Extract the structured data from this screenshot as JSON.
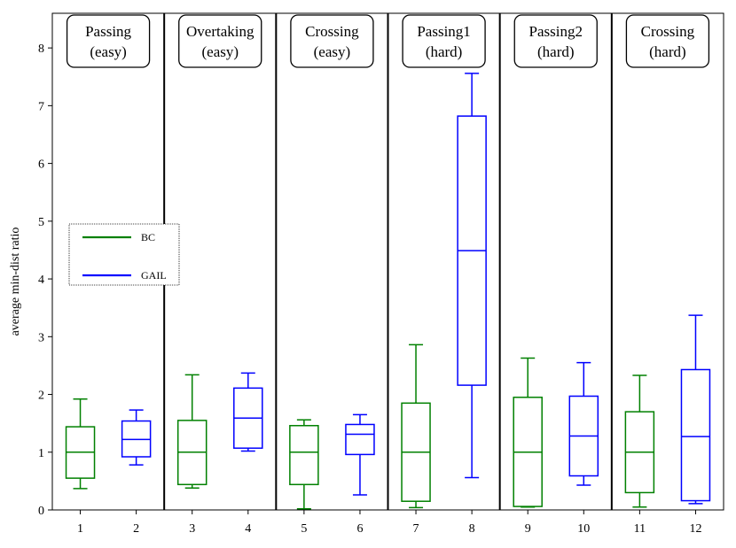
{
  "chart_data": {
    "type": "boxplot",
    "ylabel": "average min-dist ratio",
    "xlabel": "",
    "ylim": [
      0,
      8.6
    ],
    "yticks": [
      0,
      1,
      2,
      3,
      4,
      5,
      6,
      7,
      8
    ],
    "xticks": [
      1,
      2,
      3,
      4,
      5,
      6,
      7,
      8,
      9,
      10,
      11,
      12
    ],
    "grid": false,
    "legend": {
      "placement": "left-middle",
      "entries": [
        {
          "name": "BC",
          "color": "#008000"
        },
        {
          "name": "GAIL",
          "color": "#0000ff"
        }
      ]
    },
    "scenarios": [
      {
        "line1": "Passing",
        "line2": "(easy)"
      },
      {
        "line1": "Overtaking",
        "line2": "(easy)"
      },
      {
        "line1": "Crossing",
        "line2": "(easy)"
      },
      {
        "line1": "Passing1",
        "line2": "(hard)"
      },
      {
        "line1": "Passing2",
        "line2": "(hard)"
      },
      {
        "line1": "Crossing",
        "line2": "(hard)"
      }
    ],
    "boxes": [
      {
        "x": 1,
        "series": "BC",
        "whislo": 0.37,
        "q1": 0.55,
        "med": 1.0,
        "q3": 1.44,
        "whishi": 1.92
      },
      {
        "x": 2,
        "series": "GAIL",
        "whislo": 0.78,
        "q1": 0.92,
        "med": 1.22,
        "q3": 1.54,
        "whishi": 1.73
      },
      {
        "x": 3,
        "series": "BC",
        "whislo": 0.38,
        "q1": 0.44,
        "med": 1.0,
        "q3": 1.55,
        "whishi": 2.34
      },
      {
        "x": 4,
        "series": "GAIL",
        "whislo": 1.02,
        "q1": 1.07,
        "med": 1.59,
        "q3": 2.11,
        "whishi": 2.37
      },
      {
        "x": 5,
        "series": "BC",
        "whislo": 0.02,
        "q1": 0.44,
        "med": 1.0,
        "q3": 1.46,
        "whishi": 1.56
      },
      {
        "x": 6,
        "series": "GAIL",
        "whislo": 0.26,
        "q1": 0.96,
        "med": 1.31,
        "q3": 1.48,
        "whishi": 1.65
      },
      {
        "x": 7,
        "series": "BC",
        "whislo": 0.04,
        "q1": 0.15,
        "med": 1.0,
        "q3": 1.85,
        "whishi": 2.86
      },
      {
        "x": 8,
        "series": "GAIL",
        "whislo": 0.56,
        "q1": 2.16,
        "med": 4.49,
        "q3": 6.82,
        "whishi": 7.56
      },
      {
        "x": 9,
        "series": "BC",
        "whislo": 0.05,
        "q1": 0.06,
        "med": 1.0,
        "q3": 1.95,
        "whishi": 2.63
      },
      {
        "x": 10,
        "series": "GAIL",
        "whislo": 0.43,
        "q1": 0.59,
        "med": 1.28,
        "q3": 1.97,
        "whishi": 2.55
      },
      {
        "x": 11,
        "series": "BC",
        "whislo": 0.05,
        "q1": 0.3,
        "med": 1.0,
        "q3": 1.7,
        "whishi": 2.33
      },
      {
        "x": 12,
        "series": "GAIL",
        "whislo": 0.11,
        "q1": 0.16,
        "med": 1.27,
        "q3": 2.43,
        "whishi": 3.37
      }
    ]
  }
}
